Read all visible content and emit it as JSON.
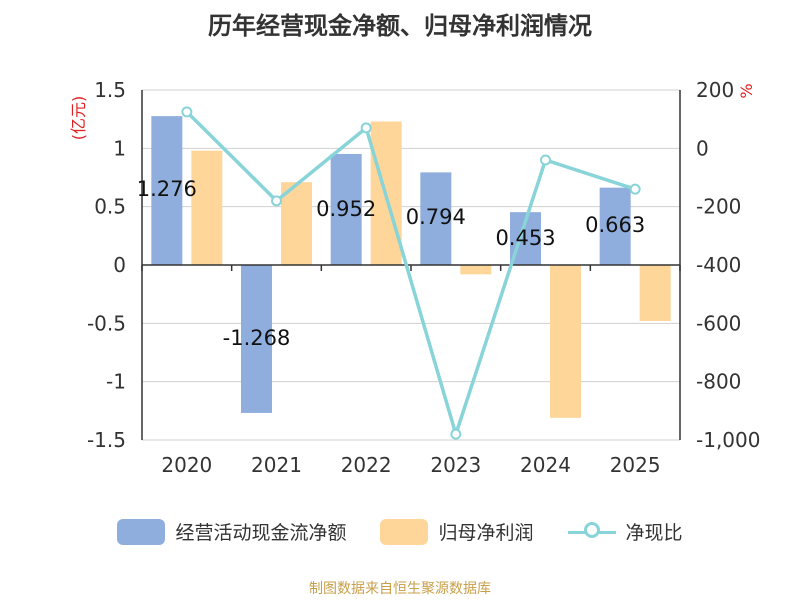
{
  "chart_data": {
    "type": "bar+line",
    "title": "历年经营现金净额、归母净利润情况",
    "categories": [
      "2020",
      "2021",
      "2022",
      "2023",
      "2024",
      "2025"
    ],
    "series": [
      {
        "name": "经营活动现金流净额",
        "type": "bar",
        "axis": "left",
        "values": [
          1.276,
          -1.268,
          0.952,
          0.794,
          0.453,
          0.663
        ],
        "labels": [
          "1.276",
          "-1.268",
          "0.952",
          "0.794",
          "0.453",
          "0.663"
        ]
      },
      {
        "name": "归母净利润",
        "type": "bar",
        "axis": "left",
        "values": [
          0.98,
          0.71,
          1.23,
          -0.08,
          -1.31,
          -0.48
        ]
      },
      {
        "name": "净现比",
        "type": "line",
        "axis": "right",
        "values": [
          125,
          -180,
          70,
          -980,
          -40,
          -140
        ]
      }
    ],
    "left_axis": {
      "label": "(亿元)",
      "ylim": [
        -1.5,
        1.5
      ],
      "ticks": [
        1.5,
        1,
        0.5,
        0,
        -0.5,
        -1,
        -1.5
      ],
      "tick_labels": [
        "1.5",
        "1",
        "0.5",
        "0",
        "-0.5",
        "-1",
        "-1.5"
      ]
    },
    "right_axis": {
      "label": "%",
      "ylim": [
        -1000,
        200
      ],
      "ticks": [
        200,
        0,
        -200,
        -400,
        -600,
        -800,
        -1000
      ],
      "tick_labels": [
        "200",
        "0",
        "-200",
        "-400",
        "-600",
        "-800",
        "-1,000"
      ]
    },
    "grid": true,
    "legend_position": "bottom",
    "colors": {
      "cashflow": "#8faedd",
      "profit": "#ffd699",
      "ratio": "#88d4d8",
      "axis_label": "#e02020",
      "text": "#333333",
      "grid": "#d0d0d0",
      "source": "#c8a04a"
    }
  },
  "legend": {
    "items": [
      {
        "label": "经营活动现金流净额",
        "color": "#8faedd"
      },
      {
        "label": "归母净利润",
        "color": "#ffd699"
      },
      {
        "label": "净现比",
        "color": "#88d4d8"
      }
    ]
  },
  "source_text": "制图数据来自恒生聚源数据库"
}
